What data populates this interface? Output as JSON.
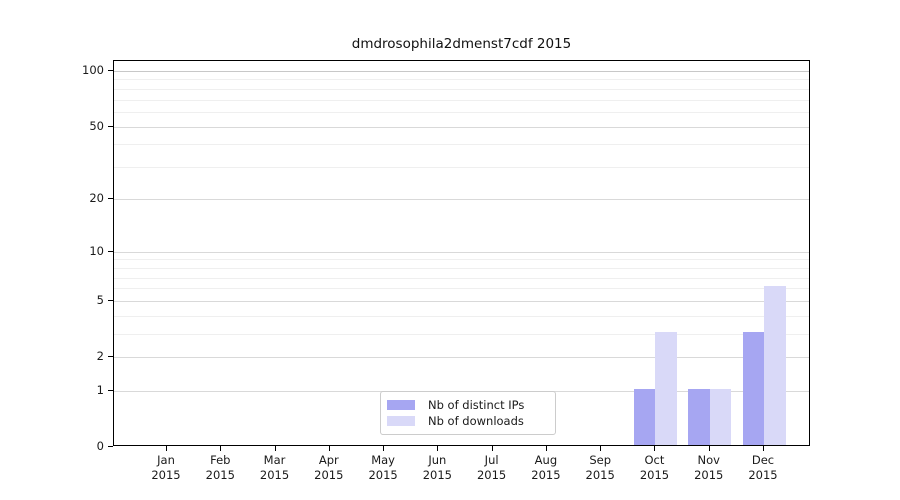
{
  "chart_data": {
    "type": "bar",
    "title": "dmdrosophila2dmenst7cdf 2015",
    "scale": "log1p",
    "categories": [
      "Jan",
      "Feb",
      "Mar",
      "Apr",
      "May",
      "Jun",
      "Jul",
      "Aug",
      "Sep",
      "Oct",
      "Nov",
      "Dec"
    ],
    "category_year": "2015",
    "series": [
      {
        "name": "Nb of distinct IPs",
        "color": "#a6a6f2",
        "values": [
          0,
          0,
          0,
          0,
          0,
          0,
          0,
          0,
          0,
          1,
          1,
          3
        ]
      },
      {
        "name": "Nb of downloads",
        "color": "#d9d9f8",
        "values": [
          0,
          0,
          0,
          0,
          0,
          0,
          0,
          0,
          0,
          3,
          1,
          6
        ]
      }
    ],
    "yticks": [
      0,
      1,
      2,
      5,
      10,
      20,
      50,
      100
    ],
    "minor_yticks": [
      3,
      4,
      6,
      7,
      8,
      9,
      30,
      40,
      60,
      70,
      80,
      90
    ],
    "ylim": [
      0,
      100
    ],
    "grid": true,
    "legend_position": "lower center"
  },
  "colors": {
    "major_grid": "#d9d9d9",
    "top_grid": "#c8c8c8",
    "minor_grid": "#efefef",
    "axis": "#000000",
    "legend_border": "#cccccc",
    "background": "#ffffff"
  }
}
